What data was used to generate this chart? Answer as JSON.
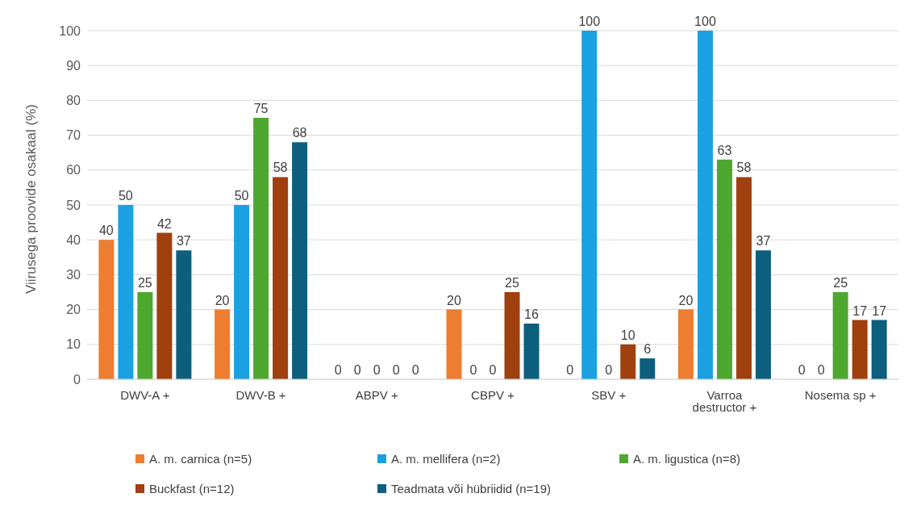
{
  "chart_data": {
    "type": "bar",
    "ylabel": "Viirusega proovide osakaal (%)",
    "categories": [
      "DWV-A +",
      "DWV-B +",
      "ABPV +",
      "CBPV +",
      "SBV +",
      "Varroa destructor +",
      "Nosema sp +"
    ],
    "series": [
      {
        "name": "A. m. carnica (n=5)",
        "color": "#ed7d31",
        "values": [
          40,
          20,
          0,
          20,
          0,
          20,
          0
        ]
      },
      {
        "name": "A. m. mellifera (n=2)",
        "color": "#1ba1e2",
        "values": [
          50,
          50,
          0,
          0,
          100,
          100,
          0
        ]
      },
      {
        "name": "A. m. ligustica (n=8)",
        "color": "#4ea72e",
        "values": [
          25,
          75,
          0,
          0,
          0,
          63,
          25
        ]
      },
      {
        "name": "Buckfast (n=12)",
        "color": "#a0400e",
        "values": [
          42,
          58,
          0,
          25,
          10,
          58,
          17
        ]
      },
      {
        "name": "Teadmata või hübriidid (n=19)",
        "color": "#0e5f7e",
        "values": [
          37,
          68,
          0,
          16,
          6,
          37,
          17
        ]
      }
    ],
    "ylim": [
      0,
      100
    ],
    "yticks": [
      0,
      10,
      20,
      30,
      40,
      50,
      60,
      70,
      80,
      90,
      100
    ],
    "grid": "y",
    "legend": "bottom",
    "data_labels": true
  }
}
